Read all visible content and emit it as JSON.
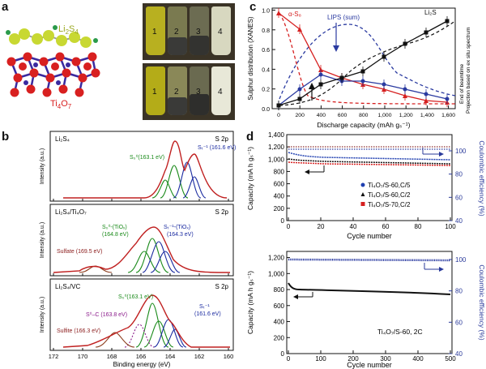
{
  "panel_labels": {
    "a": "a",
    "b": "b",
    "c": "c",
    "d": "d"
  },
  "panel_a": {
    "molecule_label_top": "Li",
    "molecule_label_top_sub": "2",
    "molecule_label_top_end": "S",
    "molecule_label_top_sub2": "4",
    "substrate_label": "Ti",
    "substrate_label_sub1": "4",
    "substrate_label_end": "O",
    "substrate_label_sub2": "7",
    "vial_numbers_top": [
      "1",
      "2",
      "3",
      "4"
    ],
    "vial_numbers_bottom": [
      "1",
      "2",
      "3",
      "4"
    ]
  },
  "panel_b": {
    "xlabel": "Binding energy (eV)",
    "ylabel": "Intensity (a.u.)",
    "xticks": [
      "172",
      "170",
      "168",
      "166",
      "164",
      "162",
      "160"
    ],
    "subplots": [
      {
        "title": "Li₂S₄",
        "region": "S 2p",
        "annotations": [
          {
            "text": "S₀⁰(163.1 eV)",
            "color": "#1a8a1a"
          },
          {
            "text": "Sₜ⁻¹ (161.6 eV)",
            "color": "#1a2aa0"
          }
        ]
      },
      {
        "title": "Li₂S₄/Ti₄O₇",
        "region": "S 2p",
        "annotations": [
          {
            "text": "S₀⁰-(TiOₓ)",
            "color": "#1a8a1a"
          },
          {
            "text": "(164.8 eV)",
            "color": "#1a8a1a"
          },
          {
            "text": "Sₜ⁻¹-(TiOₓ)",
            "color": "#1a2aa0"
          },
          {
            "text": "(164.3 eV)",
            "color": "#1a2aa0"
          },
          {
            "text": "Sulfate (169.5 eV)",
            "color": "#8a1a1a"
          }
        ]
      },
      {
        "title": "Li₂S₄/VC",
        "region": "S 2p",
        "annotations": [
          {
            "text": "S₀⁰(163.1 eV)",
            "color": "#1a8a1a"
          },
          {
            "text": "S⁰–C (163.8 eV)",
            "color": "#8a1a8a"
          },
          {
            "text": "Sₜ⁻¹",
            "color": "#1a2aa0"
          },
          {
            "text": "(161.6 eV)",
            "color": "#1a2aa0"
          },
          {
            "text": "Sulfite (166.3 eV)",
            "color": "#8a1a1a"
          }
        ]
      }
    ]
  },
  "panel_c": {
    "xlabel": "Discharge capacity (mAh gₛ⁻¹)",
    "ylabel": "Sulphur distribution (XANES)",
    "xticks": [
      "0",
      "200",
      "400",
      "600",
      "800",
      "1,000",
      "1,200",
      "1,400",
      "1,600"
    ],
    "yticks": [
      "0.0",
      "0.2",
      "0.4",
      "0.6",
      "0.8",
      "1.0"
    ],
    "label_alpha": "α-S₈",
    "label_lips": "LIPS (sum)",
    "label_li2s": "Li₂S",
    "side_text_1": "End of beamtime",
    "side_text_2": "Projection based on ex situ spectrum"
  },
  "panel_d": {
    "top": {
      "ylabel_left": "Capacity (mA h gₛ⁻¹)",
      "ylabel_right": "Coulombic efficiency (%)",
      "xlabel": "Cycle number",
      "yticks_left": [
        "0",
        "200",
        "400",
        "600",
        "800",
        "1,000",
        "1,200",
        "1,400"
      ],
      "yticks_right": [
        "40",
        "60",
        "80",
        "100"
      ],
      "xticks": [
        "0",
        "20",
        "40",
        "60",
        "80",
        "100"
      ],
      "legend": [
        {
          "text": "Ti₄O₇/S-60,C/5",
          "color": "#1f3fb0",
          "marker": "circle"
        },
        {
          "text": "Ti₄O₇/S-60,C/2",
          "color": "#111111",
          "marker": "triangle"
        },
        {
          "text": "Ti₄O₇/S-70,C/2",
          "color": "#d62020",
          "marker": "square"
        }
      ]
    },
    "bottom": {
      "ylabel_left": "Capacity (mA h gₛ⁻¹)",
      "ylabel_right": "Coulombic efficiency (%)",
      "xlabel": "Cycle number",
      "yticks_left": [
        "0",
        "200",
        "400",
        "600",
        "800",
        "1,000",
        "1,200"
      ],
      "yticks_right": [
        "40",
        "60",
        "80",
        "100"
      ],
      "xticks": [
        "0",
        "100",
        "200",
        "300",
        "400",
        "500"
      ],
      "annotation": "Ti₄O₇/S-60, 2C"
    }
  },
  "colors": {
    "blue": "#1f3fb0",
    "red": "#d62020",
    "green": "#1a8a1a",
    "purple": "#7a3aa8",
    "axis_blue": "#2a3a9a"
  }
}
